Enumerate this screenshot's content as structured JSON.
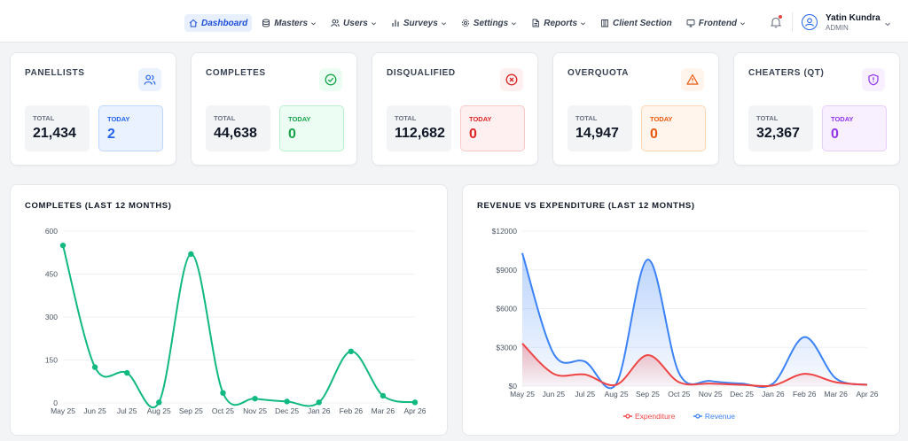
{
  "nav": {
    "items": [
      {
        "label": "Dashboard",
        "icon": "home-icon",
        "active": true,
        "dropdown": false
      },
      {
        "label": "Masters",
        "icon": "database-icon",
        "active": false,
        "dropdown": true
      },
      {
        "label": "Users",
        "icon": "users-icon",
        "active": false,
        "dropdown": true
      },
      {
        "label": "Surveys",
        "icon": "bar-chart-icon",
        "active": false,
        "dropdown": true
      },
      {
        "label": "Settings",
        "icon": "gear-icon",
        "active": false,
        "dropdown": true
      },
      {
        "label": "Reports",
        "icon": "file-icon",
        "active": false,
        "dropdown": true
      },
      {
        "label": "Client Section",
        "icon": "building-icon",
        "active": false,
        "dropdown": false
      },
      {
        "label": "Frontend",
        "icon": "monitor-icon",
        "active": false,
        "dropdown": true
      }
    ]
  },
  "user": {
    "name": "Yatin Kundra",
    "role": "ADMIN"
  },
  "cards": [
    {
      "title": "PANELLISTS",
      "icon": "users-icon",
      "total_label": "TOTAL",
      "total": "21,434",
      "today_label": "TODAY",
      "today": "2",
      "color": "#2563eb",
      "tint": "#eaf2ff",
      "border": "#bfd7fe"
    },
    {
      "title": "COMPLETES",
      "icon": "check-circle-icon",
      "total_label": "TOTAL",
      "total": "44,638",
      "today_label": "TODAY",
      "today": "0",
      "color": "#16a34a",
      "tint": "#ecfdf3",
      "border": "#bbf0cf"
    },
    {
      "title": "DISQUALIFIED",
      "icon": "x-circle-icon",
      "total_label": "TOTAL",
      "total": "112,682",
      "today_label": "TODAY",
      "today": "0",
      "color": "#dc2626",
      "tint": "#fef0f0",
      "border": "#fcc9c9"
    },
    {
      "title": "OVERQUOTA",
      "icon": "warning-icon",
      "total_label": "TOTAL",
      "total": "14,947",
      "today_label": "TODAY",
      "today": "0",
      "color": "#ea580c",
      "tint": "#fff5ec",
      "border": "#fed6b3"
    },
    {
      "title": "CHEATERS (QT)",
      "icon": "shield-alert-icon",
      "total_label": "TOTAL",
      "total": "32,367",
      "today_label": "TODAY",
      "today": "0",
      "color": "#9333ea",
      "tint": "#f8f0ff",
      "border": "#e6cffc"
    }
  ],
  "chart_data": [
    {
      "type": "line",
      "title": "COMPLETES (LAST 12 MONTHS)",
      "categories": [
        "May 25",
        "Jun 25",
        "Jul 25",
        "Aug 25",
        "Sep 25",
        "Oct 25",
        "Nov 25",
        "Dec 25",
        "Jan 26",
        "Feb 26",
        "Mar 26",
        "Apr 26"
      ],
      "series": [
        {
          "values": [
            550,
            125,
            105,
            2,
            520,
            35,
            15,
            5,
            2,
            180,
            25,
            2
          ],
          "color": "#10b981"
        }
      ],
      "ylim": [
        0,
        600
      ],
      "yticks": [
        0,
        150,
        300,
        450,
        600
      ],
      "ytick_labels": [
        "0",
        "150",
        "300",
        "450",
        "600"
      ],
      "grid": true,
      "legend": "none"
    },
    {
      "type": "area",
      "title": "REVENUE VS EXPENDITURE (LAST 12 MONTHS)",
      "categories": [
        "May 25",
        "Jun 25",
        "Jul 25",
        "Aug 25",
        "Sep 25",
        "Oct 25",
        "Nov 25",
        "Dec 25",
        "Jan 26",
        "Feb 26",
        "Mar 26",
        "Apr 26"
      ],
      "series": [
        {
          "name": "Expenditure",
          "values": [
            3300,
            950,
            900,
            100,
            2400,
            300,
            200,
            100,
            50,
            950,
            300,
            100
          ],
          "color": "#ef4444"
        },
        {
          "name": "Revenue",
          "values": [
            10300,
            2500,
            1900,
            200,
            9800,
            1000,
            400,
            200,
            200,
            3800,
            600,
            100
          ],
          "color": "#3b82f6"
        }
      ],
      "ylim": [
        0,
        12000
      ],
      "yticks": [
        0,
        3000,
        6000,
        9000,
        12000
      ],
      "ytick_labels": [
        "$0",
        "$3000",
        "$6000",
        "$9000",
        "$12000"
      ],
      "grid": true,
      "legend": "bottom"
    }
  ]
}
